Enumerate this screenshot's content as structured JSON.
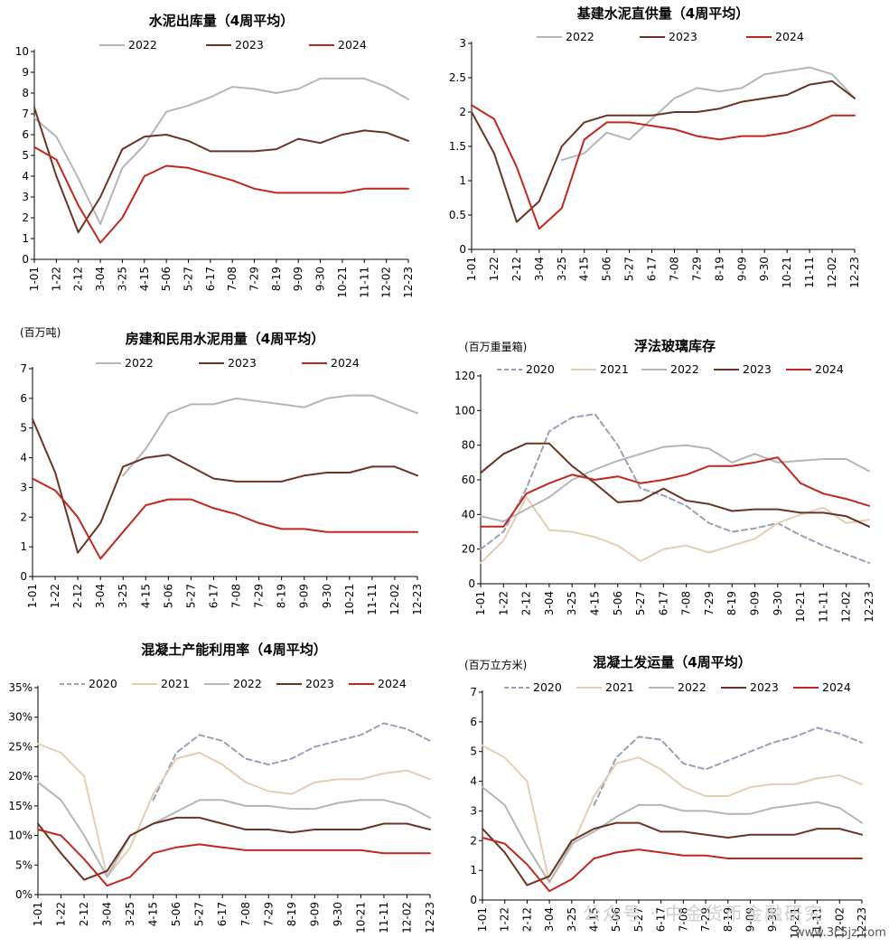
{
  "chart_data": [
    {
      "type": "line",
      "title": "水泥出库量（4周平均）",
      "unit": "",
      "categories": [
        "1-01",
        "1-22",
        "2-12",
        "3-04",
        "3-25",
        "4-15",
        "5-06",
        "5-27",
        "6-17",
        "7-08",
        "7-29",
        "8-19",
        "9-09",
        "9-30",
        "10-21",
        "11-11",
        "12-02",
        "12-23"
      ],
      "ylim": [
        0,
        10
      ],
      "yticks": [
        "0",
        "1",
        "2",
        "3",
        "4",
        "5",
        "6",
        "7",
        "8",
        "9",
        "10"
      ],
      "legend": "top",
      "series": [
        {
          "name": "2022",
          "color": "#b5b5b5",
          "dash": false,
          "values": [
            6.8,
            5.9,
            3.9,
            1.7,
            4.4,
            5.5,
            7.1,
            7.4,
            7.8,
            8.3,
            8.2,
            8.0,
            8.2,
            8.7,
            8.7,
            8.7,
            8.3,
            7.7
          ]
        },
        {
          "name": "2023",
          "color": "#6b3322",
          "dash": false,
          "values": [
            7.3,
            4.0,
            1.3,
            3.0,
            5.3,
            5.9,
            6.0,
            5.7,
            5.2,
            5.2,
            5.2,
            5.3,
            5.8,
            5.6,
            6.0,
            6.2,
            6.1,
            5.7
          ]
        },
        {
          "name": "2024",
          "color": "#c0281e",
          "dash": false,
          "values": [
            5.4,
            4.8,
            2.6,
            0.8,
            2.0,
            4.0,
            4.5,
            4.4,
            4.1,
            3.8,
            3.4,
            3.2,
            3.2,
            3.2,
            3.2,
            3.4,
            3.4,
            3.4
          ]
        }
      ]
    },
    {
      "type": "line",
      "title": "基建水泥直供量（4周平均）",
      "unit": "",
      "categories": [
        "1-01",
        "1-22",
        "2-12",
        "3-04",
        "3-25",
        "4-15",
        "5-06",
        "5-27",
        "6-17",
        "7-08",
        "7-29",
        "8-19",
        "9-09",
        "9-30",
        "10-21",
        "11-11",
        "12-02",
        "12-23"
      ],
      "ylim": [
        0,
        3
      ],
      "yticks": [
        "0",
        "0.5",
        "1",
        "1.5",
        "2",
        "2.5",
        "3"
      ],
      "legend": "top",
      "series": [
        {
          "name": "2022",
          "color": "#b5b5b5",
          "dash": false,
          "values": [
            null,
            null,
            null,
            null,
            1.3,
            1.4,
            1.7,
            1.6,
            1.9,
            2.2,
            2.35,
            2.3,
            2.35,
            2.55,
            2.6,
            2.65,
            2.55,
            2.2
          ]
        },
        {
          "name": "2023",
          "color": "#6b3322",
          "dash": false,
          "values": [
            2.0,
            1.4,
            0.4,
            0.7,
            1.5,
            1.85,
            1.95,
            1.95,
            1.95,
            2.0,
            2.0,
            2.05,
            2.15,
            2.2,
            2.25,
            2.4,
            2.45,
            2.2
          ]
        },
        {
          "name": "2024",
          "color": "#c0281e",
          "dash": false,
          "values": [
            2.1,
            1.9,
            1.2,
            0.3,
            0.6,
            1.6,
            1.85,
            1.85,
            1.8,
            1.75,
            1.65,
            1.6,
            1.65,
            1.65,
            1.7,
            1.8,
            1.95,
            1.95
          ]
        }
      ]
    },
    {
      "type": "line",
      "title": "房建和民用水泥用量（4周平均）",
      "unit": "(百万吨)",
      "categories": [
        "1-01",
        "1-22",
        "2-12",
        "3-04",
        "3-25",
        "4-15",
        "5-06",
        "5-27",
        "6-17",
        "7-08",
        "7-29",
        "8-19",
        "9-09",
        "9-30",
        "10-21",
        "11-11",
        "12-02",
        "12-23"
      ],
      "ylim": [
        0,
        7
      ],
      "yticks": [
        "0",
        "1",
        "2",
        "3",
        "4",
        "5",
        "6",
        "7"
      ],
      "legend": "top",
      "series": [
        {
          "name": "2022",
          "color": "#b5b5b5",
          "dash": false,
          "values": [
            null,
            null,
            null,
            null,
            3.4,
            4.3,
            5.5,
            5.8,
            5.8,
            6.0,
            5.9,
            5.8,
            5.7,
            6.0,
            6.1,
            6.1,
            5.8,
            5.5
          ]
        },
        {
          "name": "2023",
          "color": "#6b3322",
          "dash": false,
          "values": [
            5.3,
            3.5,
            0.8,
            1.8,
            3.7,
            4.0,
            4.1,
            3.7,
            3.3,
            3.2,
            3.2,
            3.2,
            3.4,
            3.5,
            3.5,
            3.7,
            3.7,
            3.4
          ]
        },
        {
          "name": "2024",
          "color": "#c0281e",
          "dash": false,
          "values": [
            3.3,
            2.9,
            2.0,
            0.6,
            1.5,
            2.4,
            2.6,
            2.6,
            2.3,
            2.1,
            1.8,
            1.6,
            1.6,
            1.5,
            1.5,
            1.5,
            1.5,
            1.5
          ]
        }
      ]
    },
    {
      "type": "line",
      "title": "浮法玻璃库存",
      "unit": "(百万重量箱)",
      "categories": [
        "1-01",
        "1-22",
        "2-12",
        "3-04",
        "3-25",
        "4-15",
        "5-06",
        "5-27",
        "6-17",
        "7-08",
        "7-29",
        "8-19",
        "9-09",
        "9-30",
        "10-21",
        "11-11",
        "12-02",
        "12-23"
      ],
      "ylim": [
        0,
        120
      ],
      "yticks": [
        "0",
        "20",
        "40",
        "60",
        "80",
        "100",
        "120"
      ],
      "legend": "top",
      "series": [
        {
          "name": "2020",
          "color": "#9a9fb8",
          "dash": true,
          "values": [
            20,
            30,
            55,
            88,
            96,
            98,
            80,
            55,
            51,
            45,
            35,
            30,
            32,
            35,
            28,
            22,
            17,
            12
          ]
        },
        {
          "name": "2021",
          "color": "#e3cdb3",
          "dash": false,
          "values": [
            12,
            25,
            50,
            31,
            30,
            27,
            22,
            13,
            20,
            22,
            18,
            22,
            26,
            35,
            40,
            44,
            35,
            37
          ]
        },
        {
          "name": "2022",
          "color": "#b5b5b5",
          "dash": false,
          "values": [
            39,
            36,
            43,
            50,
            60,
            66,
            71,
            75,
            79,
            80,
            78,
            70,
            75,
            70,
            71,
            72,
            72,
            65
          ]
        },
        {
          "name": "2023",
          "color": "#6b3322",
          "dash": false,
          "values": [
            64,
            75,
            81,
            81,
            68,
            58,
            47,
            48,
            55,
            48,
            46,
            42,
            43,
            43,
            41,
            41,
            39,
            33
          ]
        },
        {
          "name": "2024",
          "color": "#c0281e",
          "dash": false,
          "values": [
            33,
            33,
            52,
            58,
            63,
            60,
            62,
            58,
            60,
            63,
            68,
            68,
            70,
            73,
            58,
            52,
            49,
            45
          ]
        }
      ]
    },
    {
      "type": "line",
      "title": "混凝土产能利用率（4周平均）",
      "unit": "",
      "categories": [
        "1-01",
        "1-22",
        "2-12",
        "3-04",
        "3-25",
        "4-15",
        "5-06",
        "5-27",
        "6-17",
        "7-08",
        "7-29",
        "8-19",
        "9-09",
        "9-30",
        "10-21",
        "11-11",
        "12-02",
        "12-23"
      ],
      "ylim": [
        0,
        35
      ],
      "yticks": [
        "0%",
        "5%",
        "10%",
        "15%",
        "20%",
        "25%",
        "30%",
        "35%"
      ],
      "legend": "top",
      "series": [
        {
          "name": "2020",
          "color": "#9a9fb8",
          "dash": true,
          "values": [
            null,
            null,
            null,
            null,
            null,
            16,
            24,
            27,
            26,
            23,
            22,
            23,
            25,
            26,
            27,
            29,
            28,
            26
          ]
        },
        {
          "name": "2021",
          "color": "#e3cdb3",
          "dash": false,
          "values": [
            25.5,
            24,
            20,
            3,
            8,
            17,
            23,
            24,
            22,
            19,
            17.5,
            17,
            19,
            19.5,
            19.5,
            20.5,
            21,
            19.5
          ]
        },
        {
          "name": "2022",
          "color": "#b5b5b5",
          "dash": false,
          "values": [
            19,
            16,
            10,
            3,
            10,
            12,
            14,
            16,
            16,
            15,
            15,
            14.5,
            14.5,
            15.5,
            16,
            16,
            15,
            13
          ]
        },
        {
          "name": "2023",
          "color": "#6b3322",
          "dash": false,
          "values": [
            12,
            7,
            2.5,
            4,
            10,
            12,
            13,
            13,
            12,
            11,
            11,
            10.5,
            11,
            11,
            11,
            12,
            12,
            11
          ]
        },
        {
          "name": "2024",
          "color": "#c0281e",
          "dash": false,
          "values": [
            11,
            10,
            6,
            1.5,
            3,
            7,
            8,
            8.5,
            8,
            7.5,
            7.5,
            7.5,
            7.5,
            7.5,
            7.5,
            7,
            7,
            7
          ]
        }
      ]
    },
    {
      "type": "line",
      "title": "混凝土发运量（4周平均）",
      "unit": "(百万立方米)",
      "categories": [
        "1-01",
        "1-22",
        "2-12",
        "3-04",
        "3-25",
        "4-15",
        "5-06",
        "5-27",
        "6-17",
        "7-08",
        "7-29",
        "8-19",
        "9-09",
        "9-30",
        "10-21",
        "11-11",
        "12-02",
        "12-23"
      ],
      "ylim": [
        0,
        7
      ],
      "yticks": [
        "0",
        "1",
        "2",
        "3",
        "4",
        "5",
        "6",
        "7"
      ],
      "legend": "top",
      "series": [
        {
          "name": "2020",
          "color": "#9a9fb8",
          "dash": true,
          "values": [
            null,
            null,
            null,
            null,
            null,
            3.2,
            4.8,
            5.5,
            5.4,
            4.6,
            4.4,
            4.7,
            5.0,
            5.3,
            5.5,
            5.8,
            5.6,
            5.3
          ]
        },
        {
          "name": "2021",
          "color": "#e3cdb3",
          "dash": false,
          "values": [
            5.2,
            4.8,
            4.0,
            0.6,
            1.8,
            3.5,
            4.6,
            4.8,
            4.4,
            3.8,
            3.5,
            3.5,
            3.8,
            3.9,
            3.9,
            4.1,
            4.2,
            3.9
          ]
        },
        {
          "name": "2022",
          "color": "#b5b5b5",
          "dash": false,
          "values": [
            3.8,
            3.2,
            1.8,
            0.6,
            1.9,
            2.3,
            2.8,
            3.2,
            3.2,
            3.0,
            3.0,
            2.9,
            2.9,
            3.1,
            3.2,
            3.3,
            3.1,
            2.6
          ]
        },
        {
          "name": "2023",
          "color": "#6b3322",
          "dash": false,
          "values": [
            2.4,
            1.6,
            0.5,
            0.8,
            2.0,
            2.4,
            2.6,
            2.6,
            2.3,
            2.3,
            2.2,
            2.1,
            2.2,
            2.2,
            2.2,
            2.4,
            2.4,
            2.2
          ]
        },
        {
          "name": "2024",
          "color": "#c0281e",
          "dash": false,
          "values": [
            2.1,
            1.9,
            1.2,
            0.3,
            0.7,
            1.4,
            1.6,
            1.7,
            1.6,
            1.5,
            1.5,
            1.4,
            1.4,
            1.4,
            1.4,
            1.4,
            1.4,
            1.4
          ]
        }
      ]
    }
  ],
  "watermark": {
    "text": "公众号 · 中金货币金融研究",
    "site": "www.3c5jz.com"
  }
}
